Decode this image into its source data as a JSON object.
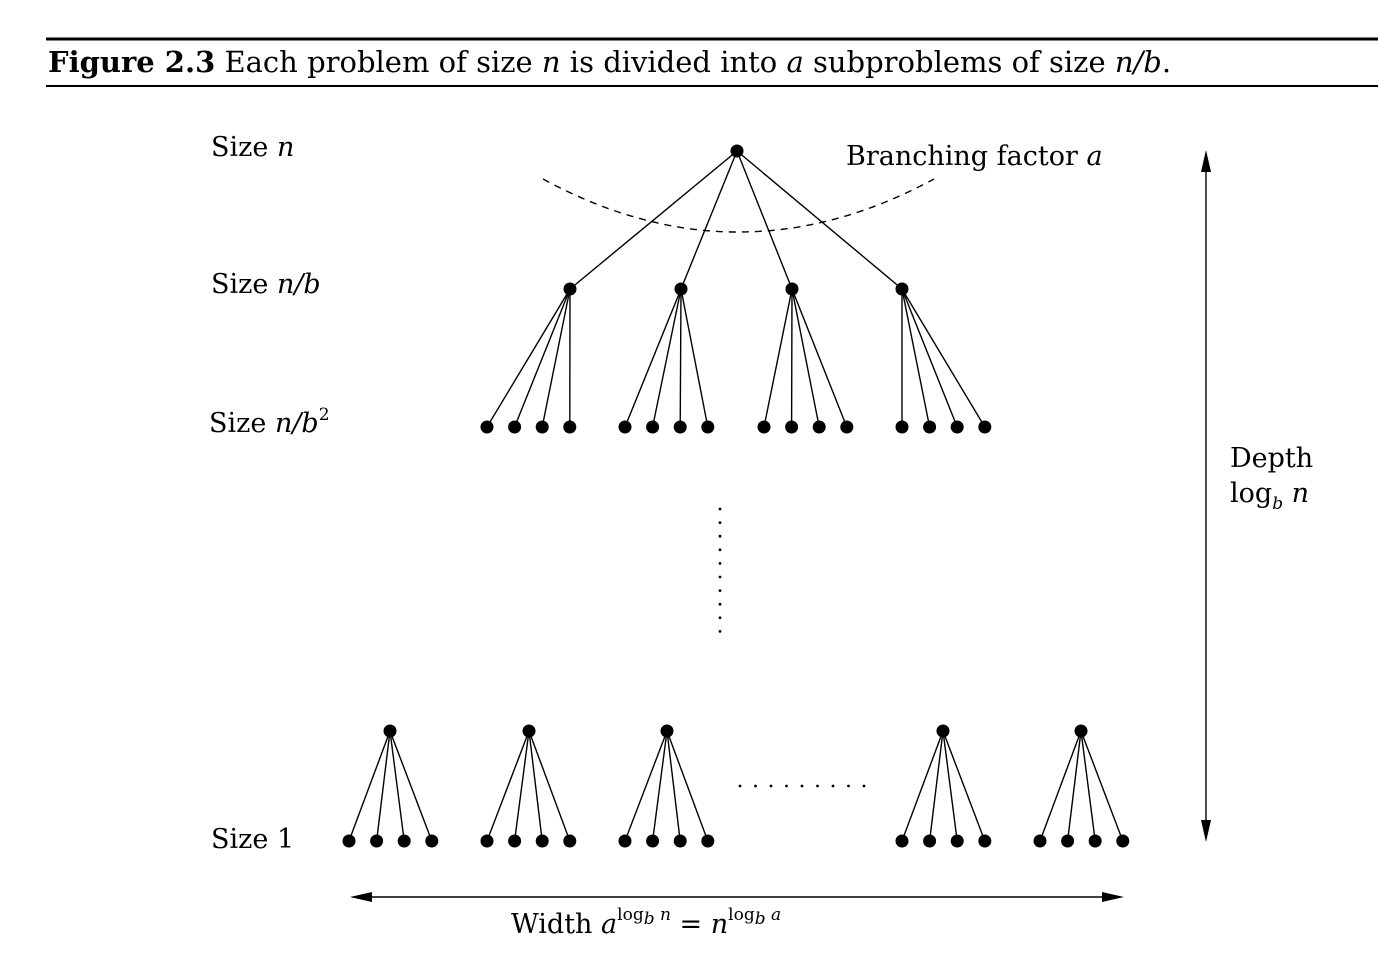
{
  "caption": {
    "figure_label": "Figure 2.3",
    "text_1": " Each problem of size ",
    "var_n": "n",
    "text_2": " is divided into ",
    "var_a": "a",
    "text_3": " subproblems of size ",
    "expr": "n/b",
    "text_4": "."
  },
  "levels": [
    {
      "word": "Size",
      "math": "n",
      "sup": ""
    },
    {
      "word": "Size",
      "math": "n/b",
      "sup": ""
    },
    {
      "word": "Size",
      "math": "n/b",
      "sup": "2"
    },
    {
      "word": "Size",
      "math": "",
      "num": "1"
    }
  ],
  "branching": {
    "word": "Branching factor",
    "var": "a"
  },
  "depth": {
    "word": "Depth",
    "log": "log",
    "base": "b",
    "arg": "n"
  },
  "width": {
    "word": "Width",
    "base1": "a",
    "exp1_log": "log",
    "exp1_base": "b",
    "exp1_arg": "n",
    "eq": "=",
    "base2": "n",
    "exp2_log": "log",
    "exp2_base": "b",
    "exp2_arg": "a"
  },
  "tree": {
    "root_children": 4,
    "children_per_node": 4,
    "bottom_groups_left": 3,
    "bottom_groups_right": 2
  }
}
